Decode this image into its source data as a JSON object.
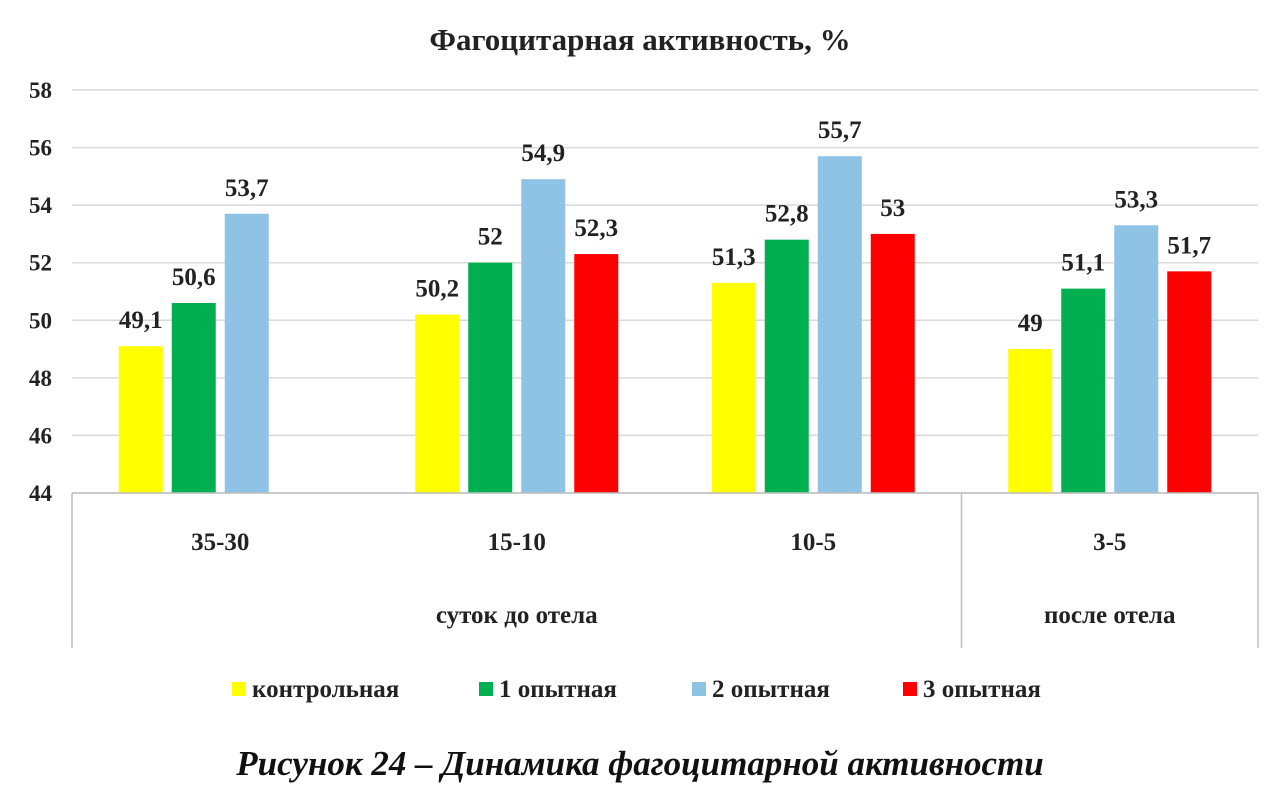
{
  "chart_data": {
    "type": "bar",
    "title": "Фагоцитарная активность, %",
    "categories": [
      "35-30",
      "15-10",
      "10-5",
      "3-5"
    ],
    "category_groups": [
      {
        "label": "суток до отела",
        "categories": [
          "35-30",
          "15-10",
          "10-5"
        ]
      },
      {
        "label": "после отела",
        "categories": [
          "3-5"
        ]
      }
    ],
    "series": [
      {
        "name": "контрольная",
        "color": "#ffff00",
        "values": [
          49.1,
          50.2,
          51.3,
          49
        ],
        "labels": [
          "49,1",
          "50,2",
          "51,3",
          "49"
        ]
      },
      {
        "name": "1 опытная",
        "color": "#00b050",
        "values": [
          50.6,
          52,
          52.8,
          51.1
        ],
        "labels": [
          "50,6",
          "52",
          "52,8",
          "51,1"
        ]
      },
      {
        "name": "2 опытная",
        "color": "#8ec3e6",
        "values": [
          53.7,
          54.9,
          55.7,
          53.3
        ],
        "labels": [
          "53,7",
          "54,9",
          "55,7",
          "53,3"
        ]
      },
      {
        "name": "3 опытная",
        "color": "#ff0000",
        "values": [
          null,
          52.3,
          53,
          51.7
        ],
        "labels": [
          null,
          "52,3",
          "53",
          "51,7"
        ]
      }
    ],
    "ylim": [
      44,
      58
    ],
    "yticks": [
      44,
      46,
      48,
      50,
      52,
      54,
      56,
      58
    ],
    "grid": true,
    "legend_position": "bottom",
    "caption": "Рисунок 24 – Динамика фагоцитарной активности"
  }
}
